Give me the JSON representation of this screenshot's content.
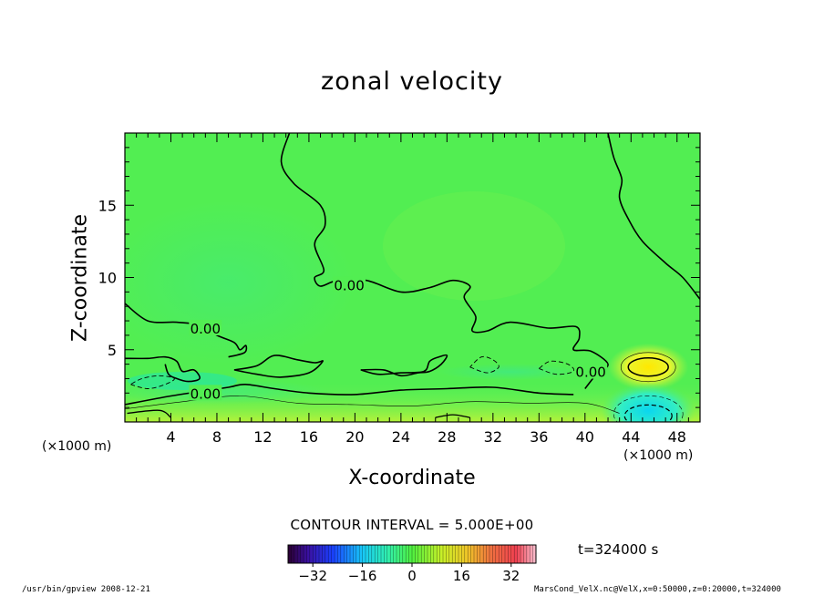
{
  "chart_data": {
    "type": "contour",
    "title": "zonal velocity",
    "xlabel": "X-coordinate",
    "ylabel": "Z-coordinate",
    "x_unit": "(×1000 m)",
    "x_ticks": [
      4,
      8,
      12,
      16,
      20,
      24,
      28,
      32,
      36,
      40,
      44,
      48
    ],
    "y_ticks": [
      5,
      10,
      15
    ],
    "xlim": [
      0,
      50
    ],
    "ylim": [
      0,
      20
    ],
    "contour_interval_label": "CONTOUR INTERVAL = 5.000E+00",
    "contour_labels": [
      {
        "text": "0.00",
        "x": 19.5,
        "y": 9.5
      },
      {
        "text": "0.00",
        "x": 7.0,
        "y": 6.5
      },
      {
        "text": "0.00",
        "x": 7.0,
        "y": 2.0
      },
      {
        "text": "0.00",
        "x": 40.5,
        "y": 3.5
      }
    ],
    "zero_contours": [
      [
        [
          14.3,
          20
        ],
        [
          13.6,
          18
        ],
        [
          14.7,
          16.5
        ],
        [
          17.0,
          15.0
        ],
        [
          17.4,
          13.6
        ],
        [
          16.5,
          12.3
        ],
        [
          17.3,
          10.5
        ],
        [
          16.5,
          10.0
        ],
        [
          17.0,
          9.4
        ],
        [
          18.5,
          9.8
        ],
        [
          21.0,
          9.8
        ],
        [
          24.0,
          9.0
        ],
        [
          26.5,
          9.3
        ],
        [
          28.5,
          9.8
        ],
        [
          30.0,
          9.4
        ],
        [
          29.5,
          8.6
        ],
        [
          30.5,
          7.3
        ],
        [
          30.2,
          6.3
        ],
        [
          31.5,
          6.3
        ],
        [
          33.5,
          6.9
        ],
        [
          36.8,
          6.5
        ],
        [
          39.2,
          6.6
        ],
        [
          39.5,
          5.8
        ],
        [
          39.0,
          5.0
        ],
        [
          40.5,
          4.9
        ],
        [
          42.0,
          4.0
        ],
        [
          41.0,
          3.3
        ],
        [
          40.0,
          2.3
        ]
      ],
      [
        [
          42.0,
          20
        ],
        [
          42.5,
          18.3
        ],
        [
          43.2,
          16.8
        ],
        [
          43.0,
          15.5
        ],
        [
          43.8,
          14.0
        ],
        [
          45.0,
          12.5
        ],
        [
          47.0,
          11.0
        ],
        [
          48.5,
          10.0
        ],
        [
          50,
          8.5
        ]
      ],
      [
        [
          0,
          8.2
        ],
        [
          2.0,
          7.0
        ],
        [
          4.5,
          6.9
        ],
        [
          6.5,
          6.7
        ],
        [
          8.0,
          6.0
        ],
        [
          9.5,
          5.5
        ],
        [
          10.0,
          5.0
        ],
        [
          10.5,
          5.3
        ],
        [
          10.4,
          4.8
        ],
        [
          9.0,
          4.5
        ]
      ],
      [
        [
          0,
          4.4
        ],
        [
          2.0,
          4.4
        ],
        [
          3.5,
          4.5
        ],
        [
          4.5,
          4.2
        ],
        [
          5.0,
          3.5
        ],
        [
          6.0,
          3.6
        ],
        [
          6.5,
          3.0
        ],
        [
          5.5,
          2.8
        ],
        [
          4.5,
          3.0
        ],
        [
          3.8,
          3.3
        ],
        [
          3.5,
          4.0
        ]
      ],
      [
        [
          0,
          1.2
        ],
        [
          4.0,
          1.8
        ],
        [
          6.5,
          2.1
        ],
        [
          9.0,
          2.4
        ],
        [
          10.5,
          2.6
        ],
        [
          13.0,
          2.3
        ],
        [
          16.0,
          2.0
        ],
        [
          20.0,
          1.9
        ],
        [
          24.0,
          2.2
        ],
        [
          28.0,
          2.3
        ],
        [
          32.0,
          2.4
        ],
        [
          36.0,
          2.0
        ],
        [
          39.0,
          1.9
        ]
      ],
      [
        [
          9.5,
          3.6
        ],
        [
          11.5,
          3.9
        ],
        [
          13.0,
          4.6
        ],
        [
          15.0,
          4.3
        ],
        [
          16.5,
          4.1
        ],
        [
          17.2,
          4.2
        ],
        [
          16.0,
          3.4
        ],
        [
          13.5,
          3.1
        ],
        [
          11.5,
          3.3
        ],
        [
          9.5,
          3.6
        ]
      ],
      [
        [
          20.5,
          3.6
        ],
        [
          22.5,
          3.6
        ],
        [
          24.0,
          3.2
        ],
        [
          25.5,
          3.4
        ],
        [
          26.5,
          3.5
        ],
        [
          27.5,
          4.0
        ],
        [
          28.0,
          4.6
        ],
        [
          27.3,
          4.5
        ],
        [
          26.5,
          4.2
        ],
        [
          26.0,
          3.5
        ],
        [
          24.0,
          3.4
        ],
        [
          22.0,
          3.3
        ],
        [
          20.5,
          3.6
        ]
      ]
    ],
    "dashed_contours": [
      [
        [
          0.5,
          2.6
        ],
        [
          2.0,
          2.3
        ],
        [
          3.5,
          2.6
        ],
        [
          4.3,
          3.0
        ],
        [
          3.0,
          3.2
        ],
        [
          1.5,
          3.0
        ],
        [
          0.5,
          2.6
        ]
      ],
      [
        [
          30.0,
          3.8
        ],
        [
          31.5,
          3.4
        ],
        [
          32.5,
          3.8
        ],
        [
          32.0,
          4.3
        ],
        [
          31.0,
          4.5
        ],
        [
          30.0,
          3.8
        ]
      ],
      [
        [
          36.0,
          3.7
        ],
        [
          37.5,
          3.3
        ],
        [
          39.0,
          3.5
        ],
        [
          38.5,
          4.0
        ],
        [
          37.0,
          4.2
        ],
        [
          36.0,
          3.7
        ]
      ]
    ],
    "jet_positive": {
      "x": 45.5,
      "y": 3.8
    },
    "jet_negative": {
      "x": 45.5,
      "y": 0.8
    },
    "colorbar": {
      "min": -40,
      "max": 40,
      "ticks": [
        -32,
        -16,
        0,
        16,
        32
      ]
    },
    "time_label": "t=324000 s"
  },
  "footer": {
    "left": "/usr/bin/gpview   2008-12-21",
    "right": "MarsCond_VelX.nc@VelX,x=0:50000,z=0:20000,t=324000"
  }
}
